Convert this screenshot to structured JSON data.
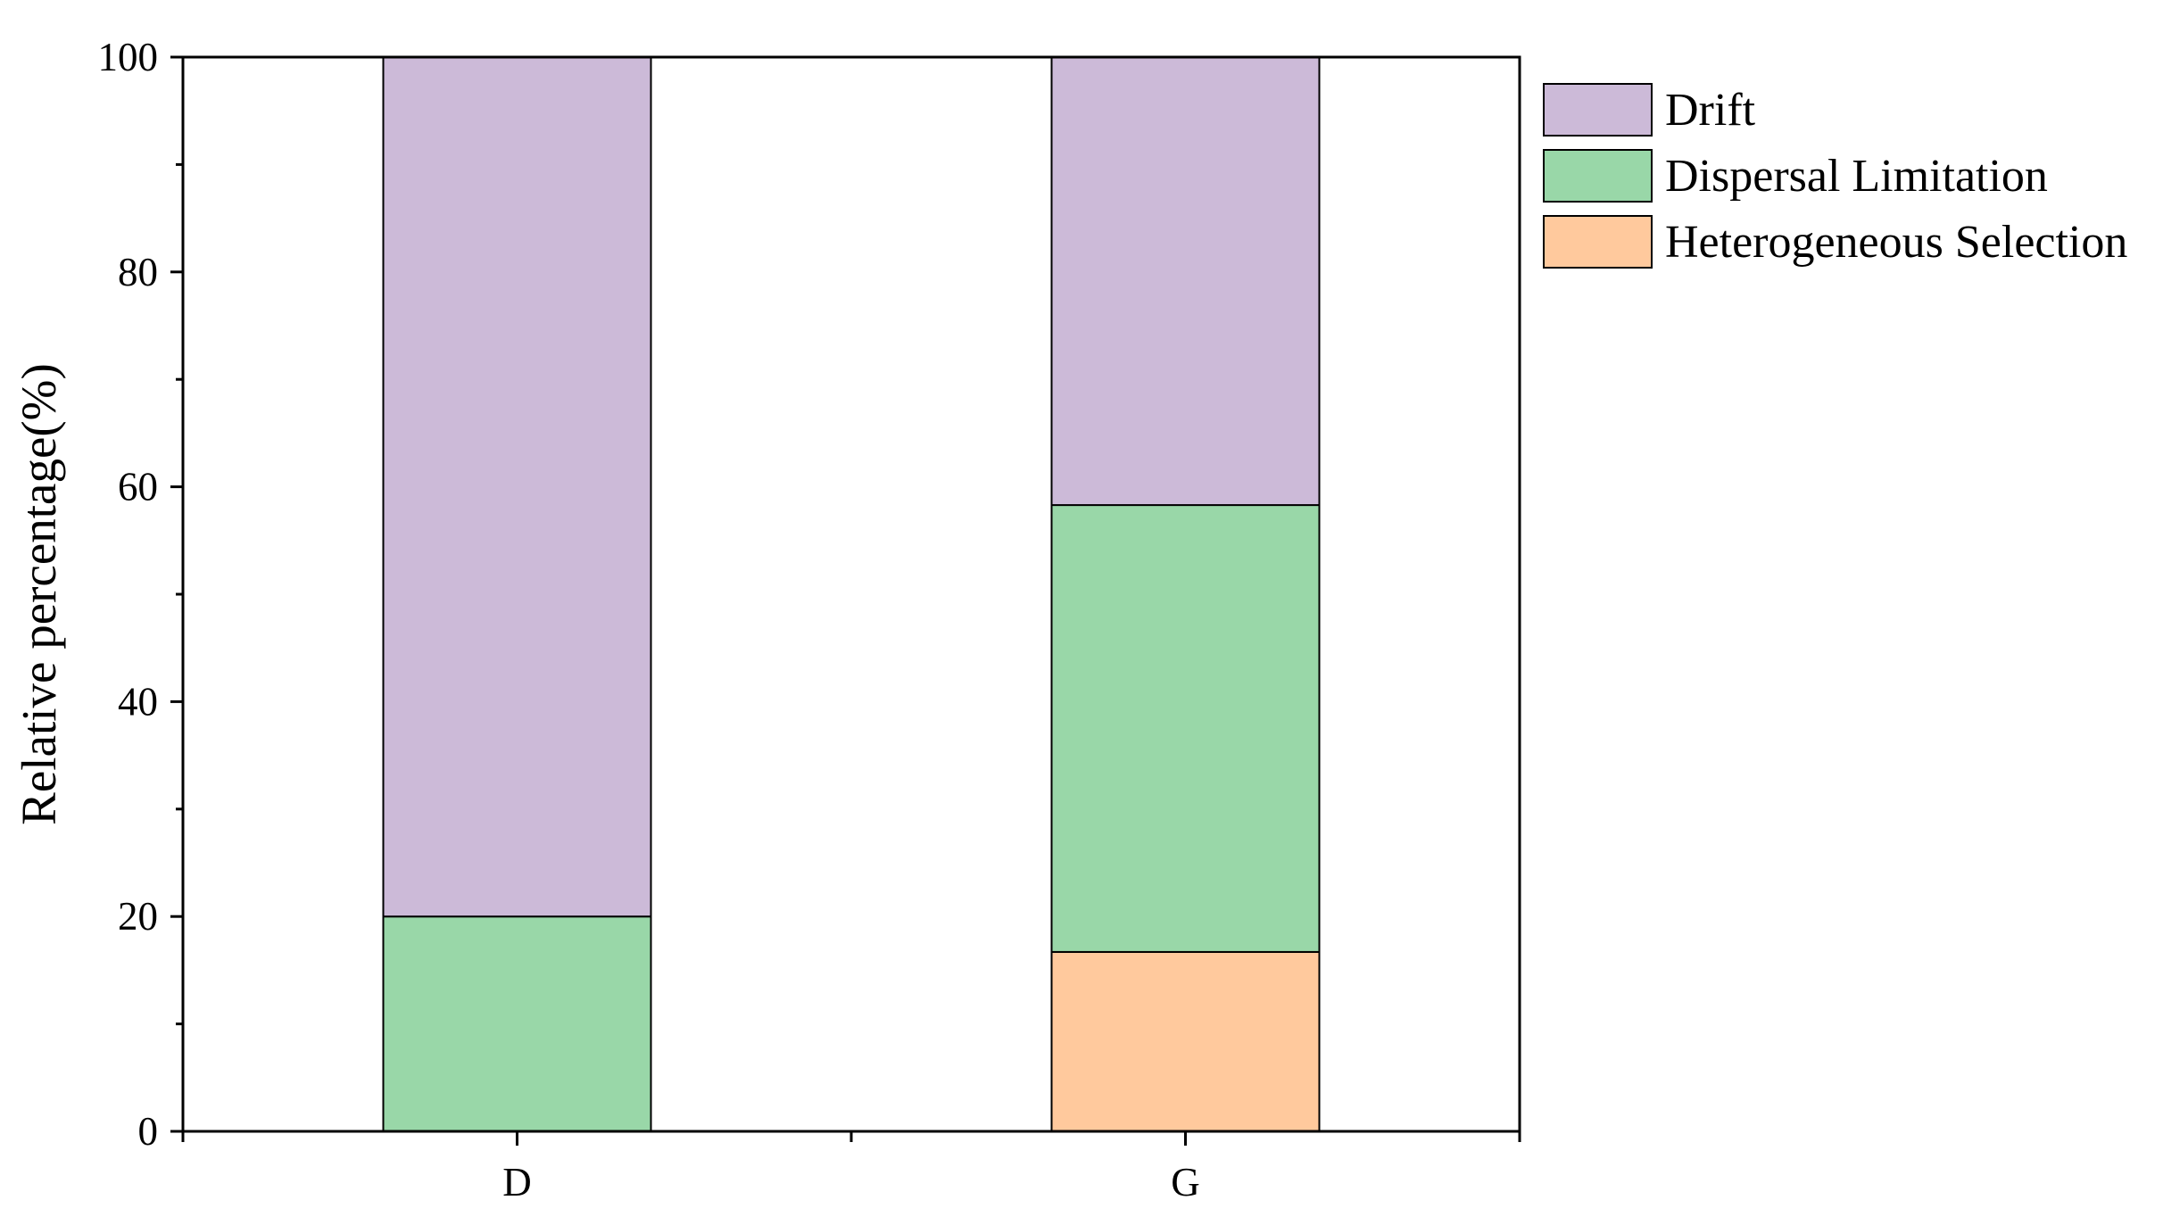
{
  "chart_data": {
    "type": "bar",
    "stacked": true,
    "categories": [
      "D",
      "G"
    ],
    "series": [
      {
        "name": "Heterogeneous Selection",
        "values": [
          0,
          16.7
        ],
        "color": "#FFC99D"
      },
      {
        "name": "Dispersal Limitation",
        "values": [
          20,
          41.6
        ],
        "color": "#99D7A8"
      },
      {
        "name": "Drift",
        "values": [
          80,
          41.7
        ],
        "color": "#CCBAD8"
      }
    ],
    "legend_order": [
      "Drift",
      "Dispersal Limitation",
      "Heterogeneous Selection"
    ],
    "title": "",
    "xlabel": "",
    "ylabel": "Relative percentage(%)",
    "ylim": [
      0,
      100
    ],
    "yticks": [
      0,
      20,
      40,
      60,
      80,
      100
    ],
    "grid": false,
    "legend_position": "right-top"
  }
}
